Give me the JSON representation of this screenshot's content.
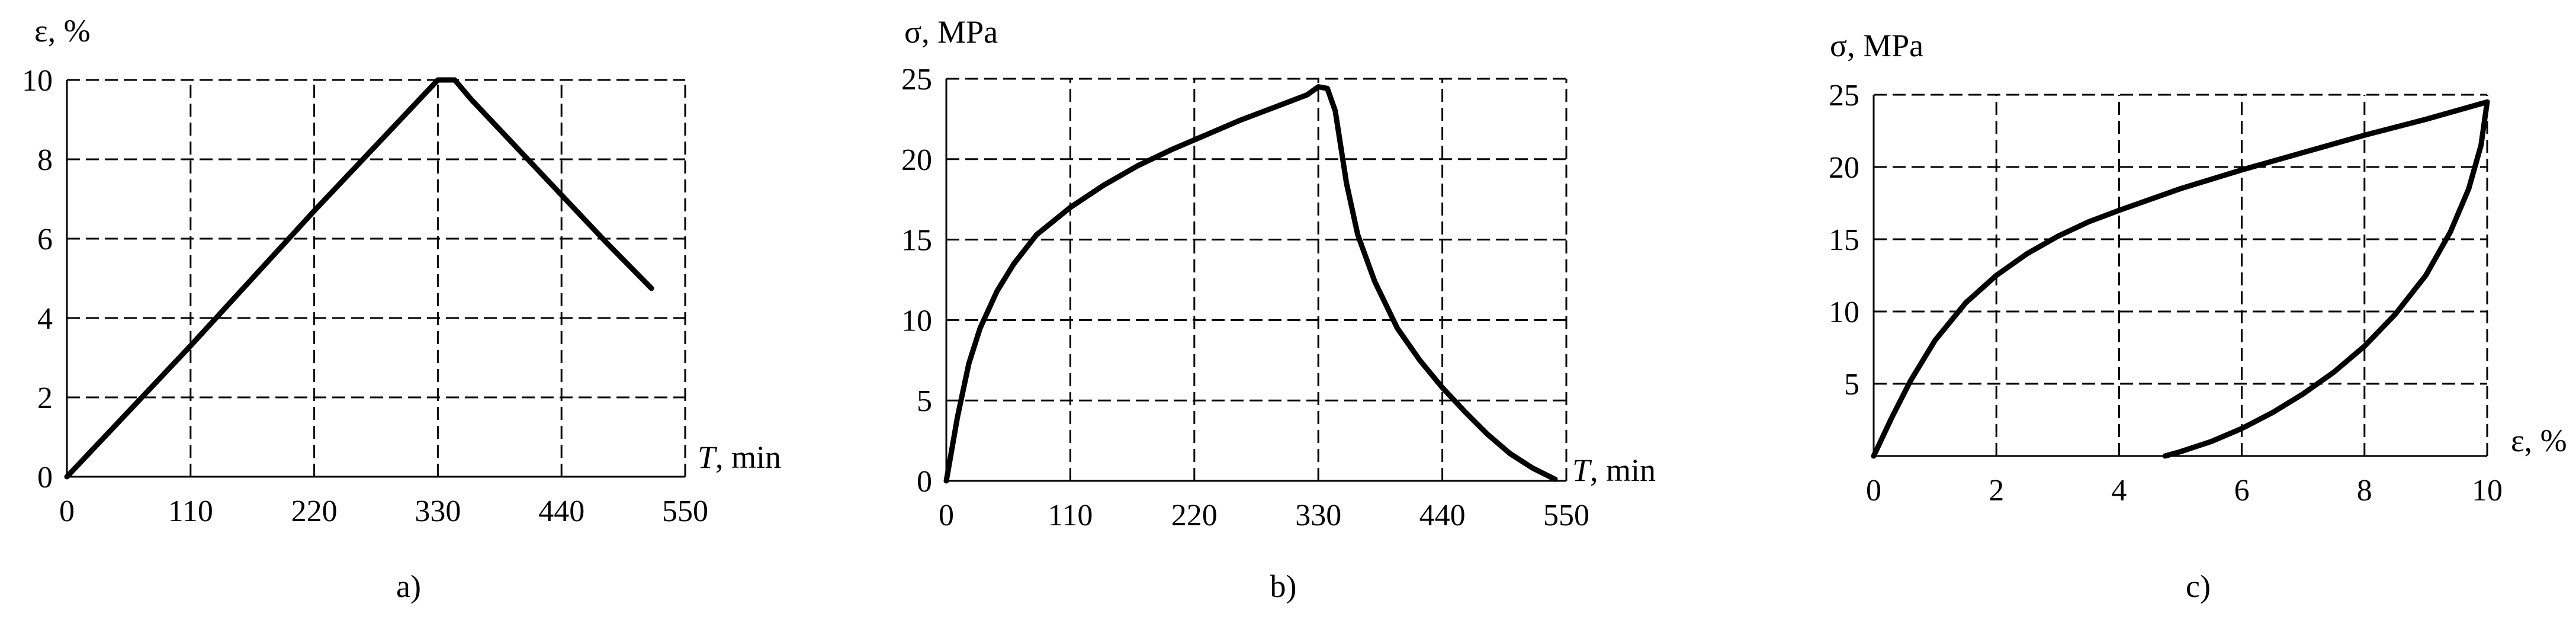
{
  "chart_data": [
    {
      "id": "a",
      "type": "line",
      "panel_label": "a)",
      "xlabel_symbol": "T",
      "xlabel_unit": ", min",
      "ylabel": "ε, %",
      "xlim": [
        0,
        550
      ],
      "ylim": [
        0,
        10
      ],
      "x_ticks": [
        0,
        110,
        220,
        330,
        440,
        550
      ],
      "x_tick_labels": [
        "0",
        "110",
        "220",
        "330",
        "440",
        "550"
      ],
      "y_ticks": [
        0,
        2,
        4,
        6,
        8,
        10
      ],
      "y_tick_labels": [
        "0",
        "2",
        "4",
        "6",
        "8",
        "10"
      ],
      "x_grid": [
        110,
        220,
        330,
        440,
        550
      ],
      "y_grid": [
        2,
        4,
        6,
        8,
        10
      ],
      "grid": true,
      "series": [
        {
          "x": [
            0,
            55,
            110,
            165,
            220,
            275,
            330,
            345,
            360,
            400,
            440,
            480,
            520
          ],
          "y": [
            0,
            1.65,
            3.3,
            5.0,
            6.7,
            8.35,
            10.0,
            10.0,
            9.5,
            8.3,
            7.1,
            5.9,
            4.75
          ]
        }
      ]
    },
    {
      "id": "b",
      "type": "line",
      "panel_label": "b)",
      "xlabel_symbol": "T",
      "xlabel_unit": ", min",
      "ylabel": "σ, MPa",
      "xlim": [
        0,
        550
      ],
      "ylim": [
        0,
        25
      ],
      "x_ticks": [
        0,
        110,
        220,
        330,
        440,
        550
      ],
      "x_tick_labels": [
        "0",
        "110",
        "220",
        "330",
        "440",
        "550"
      ],
      "y_ticks": [
        0,
        5,
        10,
        15,
        20,
        25
      ],
      "y_tick_labels": [
        "0",
        "5",
        "10",
        "15",
        "20",
        "25"
      ],
      "x_grid": [
        110,
        220,
        330,
        440,
        550
      ],
      "y_grid": [
        5,
        10,
        15,
        20,
        25
      ],
      "grid": true,
      "series": [
        {
          "x": [
            0,
            10,
            20,
            30,
            45,
            60,
            80,
            110,
            140,
            170,
            200,
            230,
            260,
            290,
            320,
            330,
            338,
            345,
            355,
            365,
            380,
            400,
            420,
            440,
            460,
            480,
            500,
            520,
            540
          ],
          "y": [
            0,
            4.0,
            7.3,
            9.5,
            11.8,
            13.5,
            15.3,
            17.0,
            18.4,
            19.6,
            20.6,
            21.5,
            22.4,
            23.2,
            24.0,
            24.5,
            24.4,
            23.0,
            18.5,
            15.3,
            12.4,
            9.5,
            7.5,
            5.8,
            4.3,
            2.9,
            1.7,
            0.8,
            0.1
          ]
        }
      ]
    },
    {
      "id": "c",
      "type": "line",
      "panel_label": "c)",
      "xlabel": "ε, %",
      "ylabel": "σ, MPa",
      "xlim": [
        0,
        10
      ],
      "ylim": [
        0,
        25
      ],
      "x_ticks": [
        0,
        2,
        4,
        6,
        8,
        10
      ],
      "x_tick_labels": [
        "0",
        "2",
        "4",
        "6",
        "8",
        "10"
      ],
      "y_ticks": [
        5,
        10,
        15,
        20,
        25
      ],
      "y_tick_labels": [
        "5",
        "10",
        "15",
        "20",
        "25"
      ],
      "x_grid": [
        2,
        4,
        6,
        8,
        10
      ],
      "y_grid": [
        5,
        10,
        15,
        20,
        25
      ],
      "grid": true,
      "series": [
        {
          "x": [
            0,
            0.3,
            0.6,
            1.0,
            1.5,
            2.0,
            2.5,
            3.0,
            3.5,
            4.0,
            5.0,
            6.0,
            7.0,
            8.0,
            9.0,
            10.0
          ],
          "y": [
            0,
            2.7,
            5.2,
            8.0,
            10.6,
            12.5,
            14.0,
            15.2,
            16.2,
            17.0,
            18.5,
            19.8,
            21.0,
            22.2,
            23.3,
            24.5
          ]
        },
        {
          "x": [
            10.0,
            9.9,
            9.7,
            9.4,
            9.0,
            8.5,
            8.0,
            7.5,
            7.0,
            6.5,
            6.0,
            5.5,
            5.0,
            4.75
          ],
          "y": [
            24.5,
            21.5,
            18.5,
            15.5,
            12.5,
            9.8,
            7.6,
            5.8,
            4.3,
            3.0,
            1.9,
            1.0,
            0.3,
            0.0
          ]
        }
      ]
    }
  ]
}
